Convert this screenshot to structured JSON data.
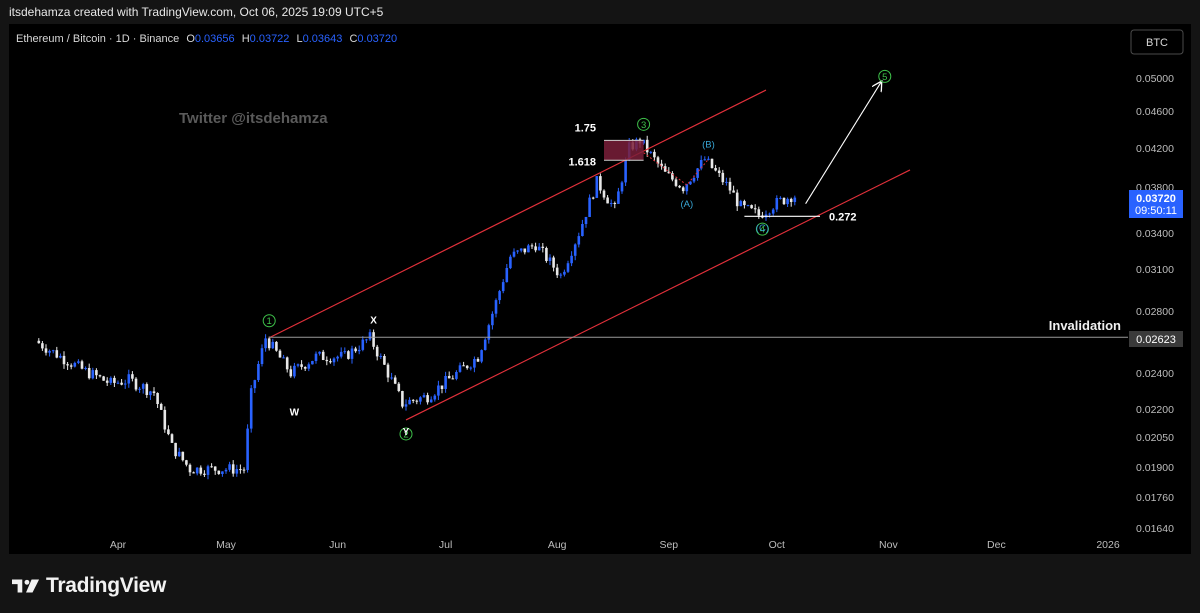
{
  "header": {
    "caption": "itsdehamza created with TradingView.com, Oct 06, 2025 19:09 UTC+5"
  },
  "legend": {
    "symbol": "Ethereum / Bitcoin · 1D · Binance",
    "o_label": "O",
    "o_value": "0.03656",
    "h_label": "H",
    "h_value": "0.03722",
    "l_label": "L",
    "l_value": "0.03643",
    "c_label": "C",
    "c_value": "0.03720"
  },
  "currency_button": "BTC",
  "watermark": "Twitter @itsdehamza",
  "price_badge": {
    "price": "0.03720",
    "countdown": "09:50:11"
  },
  "invalidation": {
    "label": "Invalidation",
    "price": "0.02623"
  },
  "footer": {
    "brand": "TradingView"
  },
  "colors": {
    "background": "#000000",
    "candle_up": "#2962ff",
    "candle_down": "#e8e8e8",
    "channel": "#e0303a",
    "wave_circle": "#3ec04a",
    "abc": "#38a7d6",
    "badge": "#2962ff"
  },
  "chart_data": {
    "type": "candlestick",
    "symbol": "Ethereum / Bitcoin",
    "interval": "1D",
    "scale": "log",
    "y_ticks": [
      "0.05000",
      "0.04600",
      "0.04200",
      "0.03800",
      "0.03400",
      "0.03100",
      "0.02800",
      "0.02400",
      "0.02200",
      "0.02050",
      "0.01900",
      "0.01760",
      "0.01640"
    ],
    "x_ticks": [
      "Apr",
      "May",
      "Jun",
      "Jul",
      "Aug",
      "Sep",
      "Oct",
      "Nov",
      "Dec",
      "2026"
    ],
    "path_points": [
      [
        "2025-03-10",
        0.026
      ],
      [
        "2025-03-17",
        0.025
      ],
      [
        "2025-03-24",
        0.0241
      ],
      [
        "2025-03-31",
        0.0234
      ],
      [
        "2025-04-05",
        0.0236
      ],
      [
        "2025-04-12",
        0.0229
      ],
      [
        "2025-04-17",
        0.02
      ],
      [
        "2025-04-22",
        0.0189
      ],
      [
        "2025-04-30",
        0.0189
      ],
      [
        "2025-05-07",
        0.0189
      ],
      [
        "2025-05-09",
        0.0228
      ],
      [
        "2025-05-11",
        0.0245
      ],
      [
        "2025-05-13",
        0.0262
      ],
      [
        "2025-05-20",
        0.024
      ],
      [
        "2025-05-27",
        0.025
      ],
      [
        "2025-06-04",
        0.025
      ],
      [
        "2025-06-11",
        0.0262
      ],
      [
        "2025-06-16",
        0.024
      ],
      [
        "2025-06-20",
        0.0223
      ],
      [
        "2025-06-27",
        0.0227
      ],
      [
        "2025-07-04",
        0.0238
      ],
      [
        "2025-07-11",
        0.025
      ],
      [
        "2025-07-16",
        0.0286
      ],
      [
        "2025-07-20",
        0.032
      ],
      [
        "2025-07-27",
        0.033
      ],
      [
        "2025-08-03",
        0.0305
      ],
      [
        "2025-08-08",
        0.034
      ],
      [
        "2025-08-13",
        0.0385
      ],
      [
        "2025-08-18",
        0.036
      ],
      [
        "2025-08-22",
        0.042
      ],
      [
        "2025-08-25",
        0.0428
      ],
      [
        "2025-09-01",
        0.0393
      ],
      [
        "2025-09-06",
        0.038
      ],
      [
        "2025-09-12",
        0.0408
      ],
      [
        "2025-09-19",
        0.0378
      ],
      [
        "2025-09-22",
        0.0362
      ],
      [
        "2025-09-27",
        0.0355
      ],
      [
        "2025-10-01",
        0.0364
      ],
      [
        "2025-10-06",
        0.0372
      ]
    ],
    "channel": {
      "upper": [
        [
          "2025-05-13",
          0.0262
        ],
        [
          "2025-09-28",
          0.0485
        ]
      ],
      "lower": [
        [
          "2025-06-20",
          0.0214
        ],
        [
          "2025-11-07",
          0.0397
        ]
      ]
    },
    "arrow_projection": [
      [
        "2025-10-09",
        0.0365
      ],
      [
        "2025-10-30",
        0.0495
      ]
    ],
    "invalidation_level": 0.02623,
    "fib_levels": [
      {
        "label": "1.75",
        "value": 0.0428
      },
      {
        "label": "1.618",
        "value": 0.0407
      },
      {
        "label": "0.272",
        "value": 0.0354
      }
    ],
    "wave_labels": [
      {
        "label": "1",
        "date": "2025-05-13",
        "value": 0.0262
      },
      {
        "label": "2",
        "date": "2025-06-20",
        "value": 0.0214
      },
      {
        "label": "3",
        "date": "2025-08-25",
        "value": 0.0428
      },
      {
        "label": "4",
        "date": "2025-09-27",
        "value": 0.0355
      },
      {
        "label": "5",
        "date": "2025-10-31",
        "value": 0.0502
      }
    ],
    "corrective_labels": [
      {
        "label": "W",
        "date": "2025-05-20",
        "value": 0.0225
      },
      {
        "label": "X",
        "date": "2025-06-11",
        "value": 0.0262
      },
      {
        "label": "Y",
        "date": "2025-06-20",
        "value": 0.0214
      },
      {
        "label": "(A)",
        "date": "2025-09-06",
        "value": 0.038
      },
      {
        "label": "(B)",
        "date": "2025-09-12",
        "value": 0.0408
      },
      {
        "label": "(C)",
        "date": "2025-09-27",
        "value": 0.0355
      }
    ]
  }
}
